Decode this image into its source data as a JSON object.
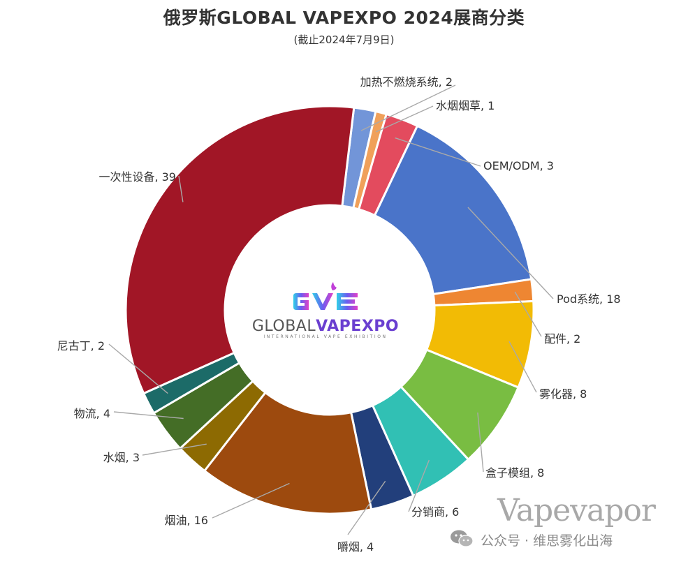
{
  "header": {
    "title": "俄罗斯GLOBAL VAPEXPO 2024展商分类",
    "subtitle": "(截止2024年7月9日)"
  },
  "center_logo": {
    "mark": "GVE",
    "name_part1": "GLOBAL",
    "name_part2": "VAPEXPO",
    "tagline": "INTERNATIONAL VAPE EXHIBITION"
  },
  "watermark": {
    "brand": "Vapevapor",
    "account": "公众号 · 维思雾化出海",
    "icon": "wechat-icon"
  },
  "chart_data": {
    "type": "pie",
    "variant": "donut",
    "title": "俄罗斯GLOBAL VAPEXPO 2024展商分类",
    "subtitle": "(截止2024年7月9日)",
    "legend": "none",
    "slices": [
      {
        "name": "加热不燃烧系统",
        "value": 2,
        "color": "#7295d8",
        "label": "加热不燃烧系统, 2"
      },
      {
        "name": "水烟烟草",
        "value": 1,
        "color": "#f0a05a",
        "label": "水烟烟草, 1"
      },
      {
        "name": "OEM/ODM",
        "value": 3,
        "color": "#e34b5e",
        "label": "OEM/ODM, 3"
      },
      {
        "name": "Pod系统",
        "value": 18,
        "color": "#4a74c9",
        "label": "Pod系统, 18"
      },
      {
        "name": "配件",
        "value": 2,
        "color": "#ee8632",
        "label": "配件, 2"
      },
      {
        "name": "雾化器",
        "value": 8,
        "color": "#f2bb05",
        "label": "雾化器, 8"
      },
      {
        "name": "盒子模组",
        "value": 8,
        "color": "#79bd42",
        "label": "盒子模组, 8"
      },
      {
        "name": "分销商",
        "value": 6,
        "color": "#31c0b4",
        "label": "分销商, 6"
      },
      {
        "name": "嚼烟",
        "value": 4,
        "color": "#223f7b",
        "label": "嚼烟, 4"
      },
      {
        "name": "烟油",
        "value": 16,
        "color": "#9d4a0e",
        "label": "烟油, 16"
      },
      {
        "name": "水烟",
        "value": 3,
        "color": "#8d6a02",
        "label": "水烟, 3"
      },
      {
        "name": "物流",
        "value": 4,
        "color": "#446d26",
        "label": "物流, 4"
      },
      {
        "name": "尼古丁",
        "value": 2,
        "color": "#1c6b68",
        "label": "尼古丁, 2"
      },
      {
        "name": "一次性设备",
        "value": 39,
        "color": "#a11626",
        "label": "一次性设备, 39"
      }
    ]
  }
}
